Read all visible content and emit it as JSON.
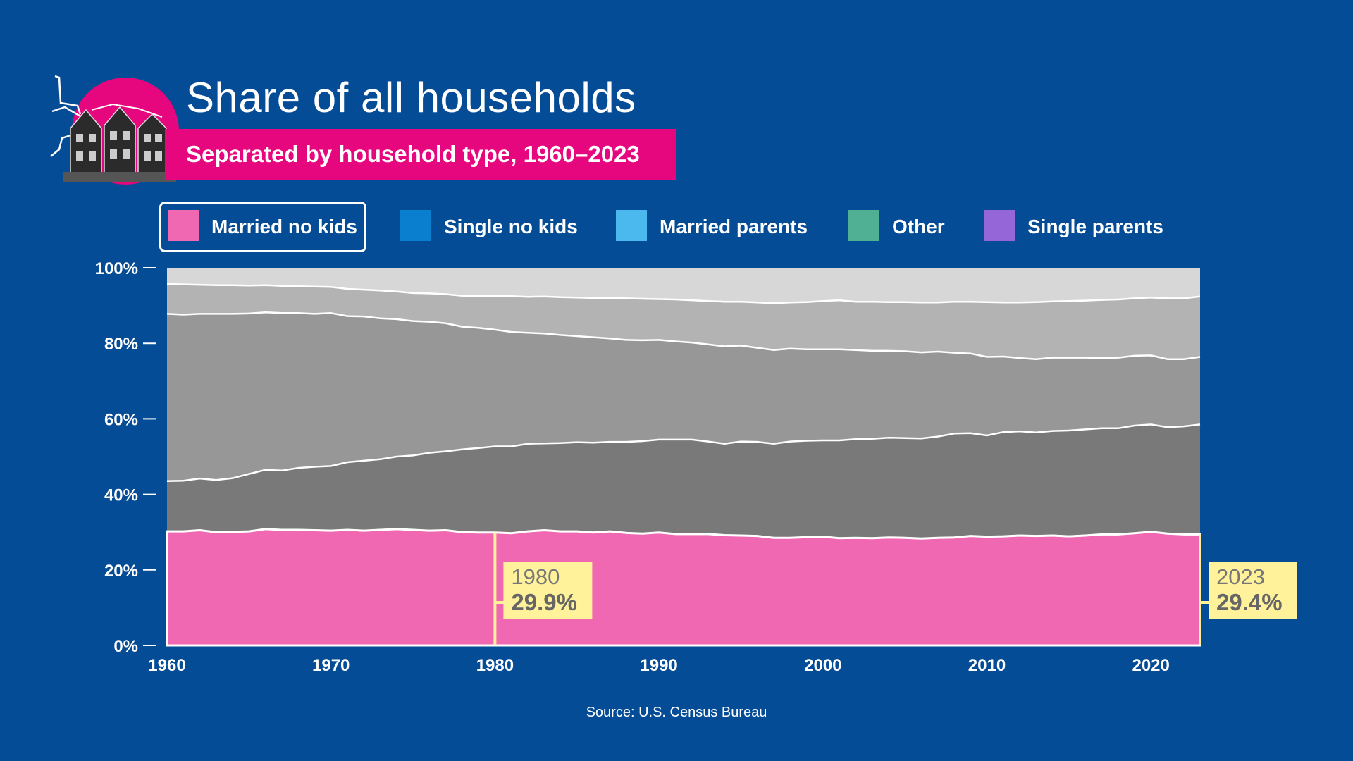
{
  "colors": {
    "background": "#054c96",
    "accent_pink": "#e6077e",
    "highlight_yellow": "#fff29a",
    "layers": [
      "#ef68b1",
      "#797979",
      "#979797",
      "#b3b3b3",
      "#d7d7d7"
    ]
  },
  "header": {
    "title": "Share of all households",
    "subtitle": "Separated by household type, 1960–2023",
    "logo_icon": "houses-illustration-icon"
  },
  "legend": {
    "items": [
      {
        "label": "Married no kids",
        "color": "#ef68b1",
        "active": true
      },
      {
        "label": "Single no kids",
        "color": "#0a7fcf",
        "active": false
      },
      {
        "label": "Married parents",
        "color": "#4bb9ee",
        "active": false
      },
      {
        "label": "Other",
        "color": "#4fb094",
        "active": false
      },
      {
        "label": "Single parents",
        "color": "#9566d8",
        "active": false
      }
    ]
  },
  "chart_data": {
    "type": "area",
    "stacked": true,
    "x": [
      1960,
      1961,
      1962,
      1963,
      1964,
      1965,
      1966,
      1967,
      1968,
      1969,
      1970,
      1971,
      1972,
      1973,
      1974,
      1975,
      1976,
      1977,
      1978,
      1979,
      1980,
      1981,
      1982,
      1983,
      1984,
      1985,
      1986,
      1987,
      1988,
      1989,
      1990,
      1991,
      1992,
      1993,
      1994,
      1995,
      1996,
      1997,
      1998,
      1999,
      2000,
      2001,
      2002,
      2003,
      2004,
      2005,
      2006,
      2007,
      2008,
      2009,
      2010,
      2011,
      2012,
      2013,
      2014,
      2015,
      2016,
      2017,
      2018,
      2019,
      2020,
      2021,
      2022,
      2023
    ],
    "boundaries": [
      [
        30.2,
        30.2,
        30.5,
        30.0,
        30.1,
        30.2,
        30.8,
        30.6,
        30.6,
        30.5,
        30.4,
        30.6,
        30.4,
        30.6,
        30.8,
        30.6,
        30.4,
        30.5,
        30.0,
        29.9,
        29.9,
        29.7,
        30.2,
        30.5,
        30.2,
        30.2,
        29.9,
        30.2,
        29.8,
        29.6,
        29.9,
        29.5,
        29.5,
        29.5,
        29.2,
        29.1,
        29.0,
        28.5,
        28.5,
        28.7,
        28.8,
        28.4,
        28.5,
        28.4,
        28.6,
        28.5,
        28.3,
        28.5,
        28.6,
        29.0,
        28.8,
        28.9,
        29.1,
        29.0,
        29.1,
        28.9,
        29.1,
        29.4,
        29.4,
        29.7,
        30.1,
        29.6,
        29.4,
        29.4
      ],
      [
        43.5,
        43.6,
        44.2,
        43.8,
        44.3,
        45.4,
        46.5,
        46.3,
        47.0,
        47.3,
        47.5,
        48.5,
        48.9,
        49.3,
        50.0,
        50.3,
        51.0,
        51.4,
        51.9,
        52.3,
        52.7,
        52.7,
        53.4,
        53.5,
        53.6,
        53.8,
        53.7,
        53.9,
        53.9,
        54.1,
        54.5,
        54.5,
        54.5,
        54.0,
        53.4,
        54.0,
        53.9,
        53.4,
        54.0,
        54.2,
        54.3,
        54.3,
        54.6,
        54.7,
        55.0,
        54.9,
        54.8,
        55.3,
        56.1,
        56.2,
        55.6,
        56.5,
        56.7,
        56.4,
        56.8,
        56.9,
        57.2,
        57.5,
        57.5,
        58.2,
        58.5,
        57.8,
        58.0,
        58.5
      ],
      [
        87.8,
        87.6,
        87.8,
        87.8,
        87.8,
        87.9,
        88.2,
        88.0,
        88.0,
        87.8,
        88.0,
        87.2,
        87.1,
        86.6,
        86.4,
        85.9,
        85.7,
        85.3,
        84.4,
        84.1,
        83.6,
        83.0,
        82.8,
        82.6,
        82.2,
        81.9,
        81.6,
        81.3,
        80.9,
        80.8,
        80.9,
        80.5,
        80.2,
        79.7,
        79.2,
        79.4,
        78.8,
        78.2,
        78.6,
        78.4,
        78.4,
        78.4,
        78.2,
        78.0,
        78.0,
        77.9,
        77.6,
        77.8,
        77.5,
        77.3,
        76.4,
        76.5,
        76.1,
        75.8,
        76.2,
        76.2,
        76.2,
        76.1,
        76.2,
        76.7,
        76.8,
        75.8,
        75.8,
        76.4
      ],
      [
        95.7,
        95.6,
        95.5,
        95.4,
        95.4,
        95.3,
        95.4,
        95.2,
        95.1,
        95.0,
        94.9,
        94.4,
        94.2,
        94.0,
        93.7,
        93.3,
        93.2,
        93.0,
        92.6,
        92.5,
        92.6,
        92.5,
        92.3,
        92.4,
        92.2,
        92.1,
        92.0,
        92.0,
        91.9,
        91.8,
        91.7,
        91.6,
        91.4,
        91.2,
        91.0,
        91.0,
        90.8,
        90.6,
        90.8,
        90.9,
        91.2,
        91.4,
        91.0,
        91.0,
        90.9,
        90.9,
        90.8,
        90.8,
        91.0,
        91.0,
        90.9,
        90.8,
        90.8,
        90.9,
        91.1,
        91.2,
        91.3,
        91.5,
        91.6,
        91.9,
        92.1,
        91.9,
        91.9,
        92.4
      ]
    ],
    "ylim": [
      0,
      100
    ],
    "xlim": [
      1960,
      2023
    ],
    "yticks": [
      "0%",
      "20%",
      "40%",
      "60%",
      "80%",
      "100%"
    ],
    "xticks": [
      1960,
      1970,
      1980,
      1990,
      2000,
      2010,
      2020
    ],
    "annotations": [
      {
        "year": "1980",
        "value": "29.9%"
      },
      {
        "year": "2023",
        "value": "29.4%"
      }
    ]
  },
  "footer": {
    "source": "Source: U.S. Census Bureau"
  }
}
